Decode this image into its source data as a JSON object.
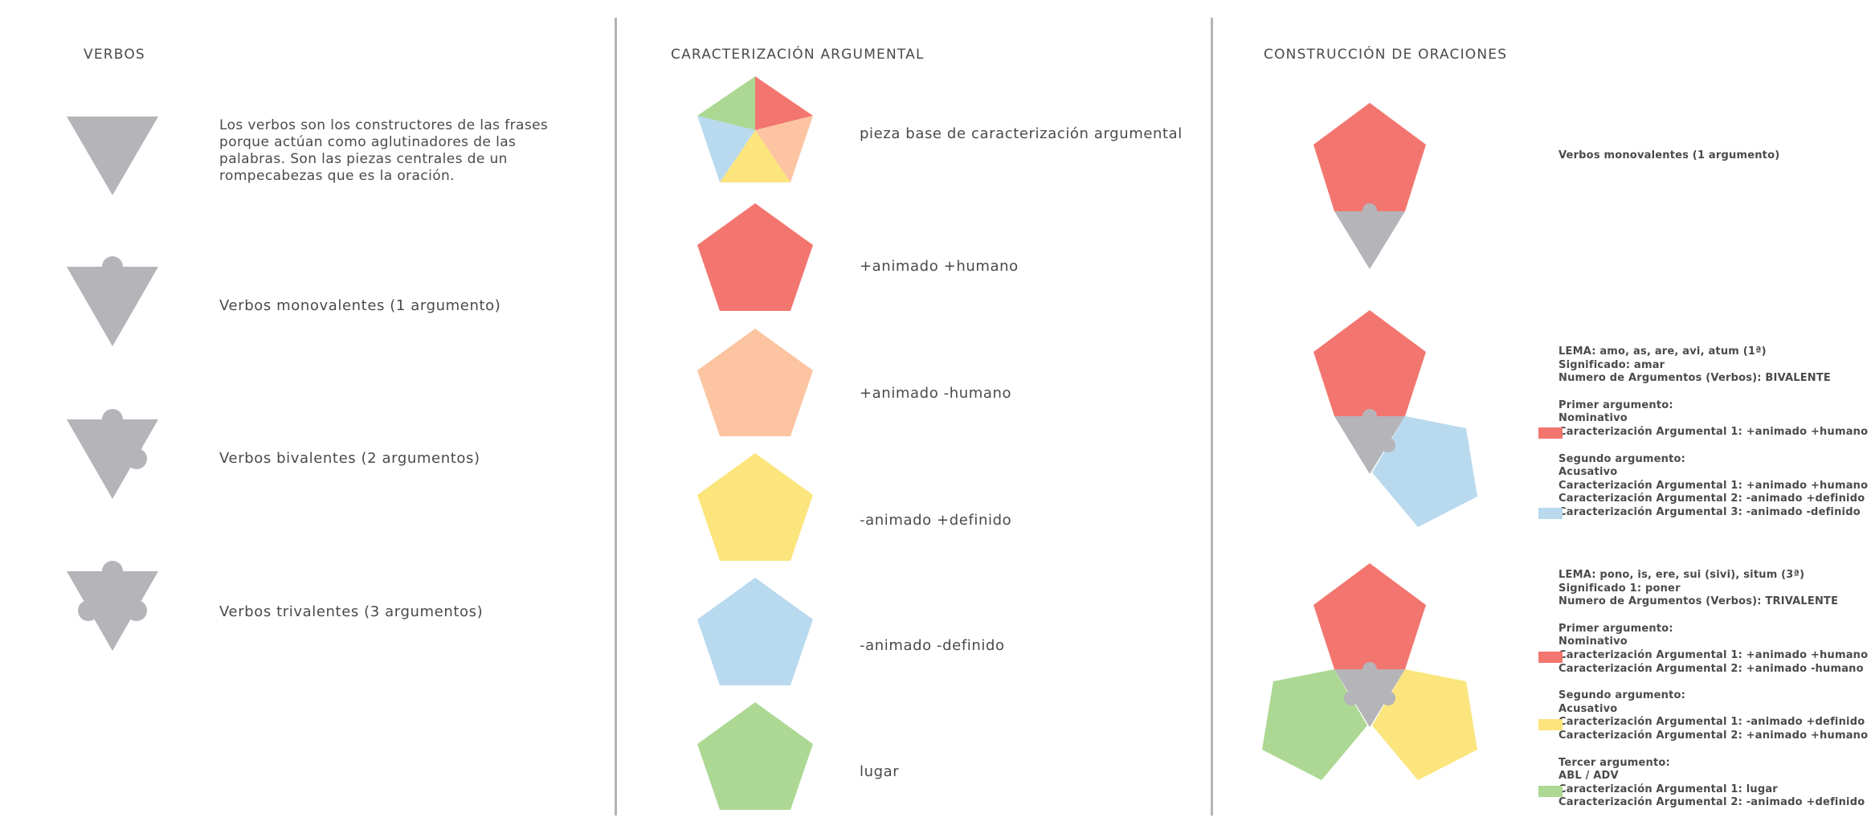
{
  "colors": {
    "verb_piece": "#b4b4b9",
    "animado_humano": "#f2766f",
    "animado_no_humano": "#fcc4a1",
    "no_animado_definido": "#fbe57c",
    "no_animado_no_definido": "#b9d9ee",
    "lugar": "#acd893",
    "divider": "#b4b4b8"
  },
  "verbos": {
    "title": "VERBOS",
    "intro": "Los verbos son los constructores de las frases porque actúan como aglutinadores de las palabras. Son las piezas centrales de un rompecabezas que es la oración.",
    "items": [
      {
        "label": "Verbos monovalentes (1 argumento)",
        "icon": "monovalent-verb-icon"
      },
      {
        "label": "Verbos bivalentes (2 argumentos)",
        "icon": "bivalent-verb-icon"
      },
      {
        "label": "Verbos trivalentes (3 argumentos)",
        "icon": "trivalent-verb-icon"
      }
    ]
  },
  "caracterizacion": {
    "title": "CARACTERIZACIÓN ARGUMENTAL",
    "items": [
      {
        "label": "pieza base de caracterización argumental",
        "icon": "multicolor-pentagon-icon"
      },
      {
        "label": "+animado +humano",
        "color": "#f2766f"
      },
      {
        "label": "+animado -humano",
        "color": "#fcc4a1"
      },
      {
        "label": "-animado +definido",
        "color": "#fbe57c"
      },
      {
        "label": "-animado -definido",
        "color": "#b9d9ee"
      },
      {
        "label": "lugar",
        "color": "#acd893"
      }
    ]
  },
  "construccion": {
    "title": "CONSTRUCCIÓN DE ORACIONES",
    "mono": {
      "caption": "Verbos monovalentes (1 argumento)"
    },
    "bi": {
      "lema": "LEMA: amo, as, are, avi, atum (1ª)",
      "significado": "Significado: amar",
      "numero": "Numero de Argumentos (Verbos): BIVALENTE",
      "arg1": {
        "header": "Primer argumento:",
        "case": "Nominativo",
        "lines": [
          "Caracterización Argumental 1: +animado +humano"
        ]
      },
      "arg2": {
        "header": "Segundo argumento:",
        "case": "Acusativo",
        "lines": [
          "Caracterización Argumental 1: +animado +humano",
          "Caracterización Argumental 2: -animado +definido",
          "Caracterización Argumental 3: -animado -definido"
        ]
      }
    },
    "tri": {
      "lema": "LEMA: pono, is, ere, sui (sivi), situm (3ª)",
      "significado": "Significado 1: poner",
      "numero": "Numero de Argumentos (Verbos): TRIVALENTE",
      "arg1": {
        "header": "Primer argumento:",
        "case": "Nominativo",
        "lines": [
          "Caracterización Argumental 1: +animado +humano",
          "Caracterización Argumental 2: +animado -humano"
        ]
      },
      "arg2": {
        "header": "Segundo argumento:",
        "case": "Acusativo",
        "lines": [
          "Caracterización Argumental 1: -animado +definido",
          "Caracterización Argumental 2: +animado +humano"
        ]
      },
      "arg3": {
        "header": "Tercer argumento:",
        "case": "ABL / ADV",
        "lines": [
          "Caracterización Argumental 1: lugar",
          "Caracterización Argumental 2: -animado +definido"
        ]
      }
    }
  }
}
